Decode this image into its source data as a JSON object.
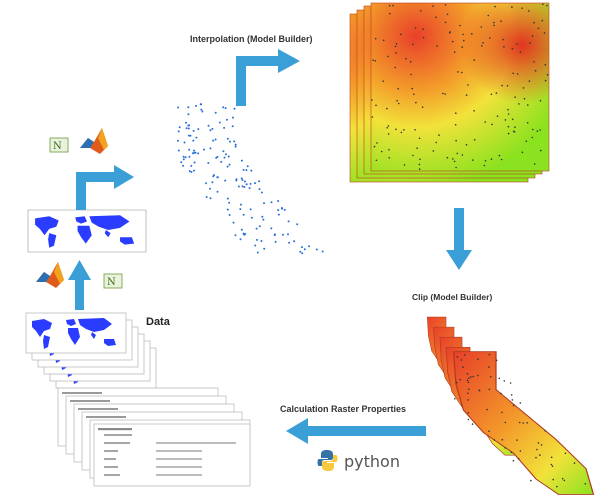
{
  "labels": {
    "interpolation": "Interpolation (Model Builder)",
    "clip": "Clip (Model Builder)",
    "calculation": "Calculation Raster Properties",
    "data": "Data",
    "python": "python"
  },
  "icons": [
    "matlab-icon",
    "arcgis-toolbox-icon",
    "python-logo-icon",
    "flow-arrow-icon"
  ],
  "colors": {
    "arrow": "#3a9fd6",
    "map_land": "#2a3cff",
    "point": "#2b6fd6",
    "raster_hot": "#e8402a",
    "raster_cool": "#8be21f"
  }
}
